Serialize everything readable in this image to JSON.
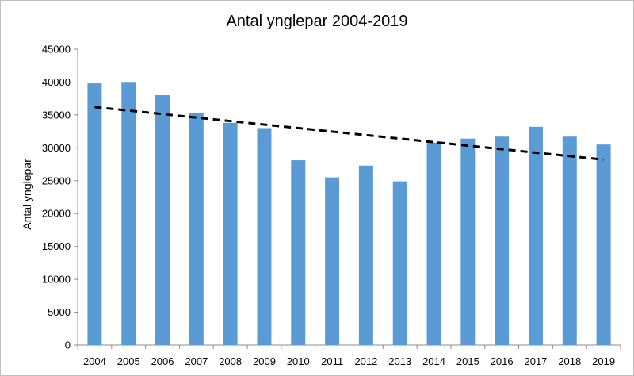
{
  "chart_data": {
    "type": "bar",
    "title": "Antal ynglepar 2004-2019",
    "xlabel": "",
    "ylabel": "Antal ynglepar",
    "categories": [
      "2004",
      "2005",
      "2006",
      "2007",
      "2008",
      "2009",
      "2010",
      "2011",
      "2012",
      "2013",
      "2014",
      "2015",
      "2016",
      "2017",
      "2018",
      "2019"
    ],
    "series": [
      {
        "name": "Antal ynglepar",
        "values": [
          39800,
          39900,
          38000,
          35300,
          33800,
          33000,
          28100,
          25500,
          27300,
          24900,
          30800,
          31400,
          31700,
          33200,
          31700,
          30500
        ],
        "color": "#5b9bd5"
      }
    ],
    "trendline": {
      "type": "linear",
      "style": "dashed",
      "color": "#000000",
      "start_value": 36200,
      "end_value": 28200
    },
    "ylim": [
      0,
      45000
    ],
    "yticks": [
      "0",
      "5000",
      "10000",
      "15000",
      "20000",
      "25000",
      "30000",
      "35000",
      "40000",
      "45000"
    ],
    "grid": false,
    "legend": "none"
  }
}
